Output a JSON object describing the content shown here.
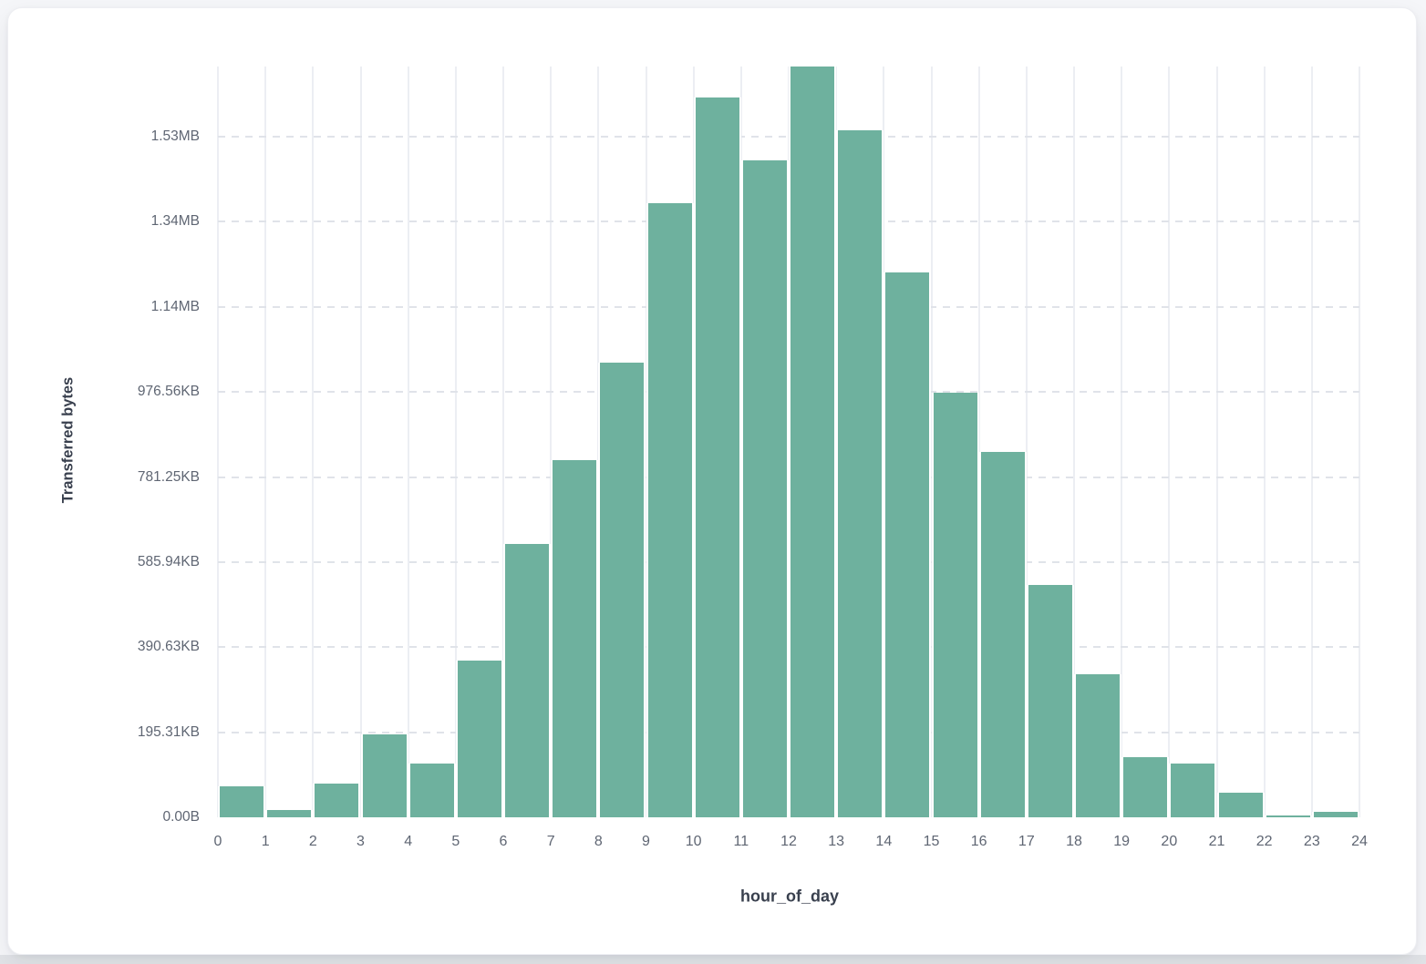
{
  "page": {
    "background_color": "#f5f6f9",
    "bottom_strip_color": "#e1e3e7",
    "card_background": "#ffffff"
  },
  "chart_data": {
    "type": "bar",
    "title": "",
    "xlabel": "hour_of_day",
    "ylabel": "Transferred bytes",
    "x_bin_start_hours": [
      0,
      1,
      2,
      3,
      4,
      5,
      6,
      7,
      8,
      9,
      10,
      11,
      12,
      13,
      14,
      15,
      16,
      17,
      18,
      19,
      20,
      21,
      22,
      23
    ],
    "values_bytes": [
      73000,
      16500,
      80000,
      196000,
      126000,
      369000,
      643000,
      839000,
      1069000,
      1444000,
      1692000,
      1545000,
      1765000,
      1616000,
      1282000,
      998000,
      858000,
      547000,
      336000,
      141000,
      126000,
      58500,
      3600,
      13000
    ],
    "x_tick_labels": [
      "0",
      "1",
      "2",
      "3",
      "4",
      "5",
      "6",
      "7",
      "8",
      "9",
      "10",
      "11",
      "12",
      "13",
      "14",
      "15",
      "16",
      "17",
      "18",
      "19",
      "20",
      "21",
      "22",
      "23",
      "24"
    ],
    "x_axis_range": [
      0,
      24
    ],
    "y_ticks": [
      {
        "label": "0.00B",
        "bytes": 0
      },
      {
        "label": "195.31KB",
        "bytes": 200000
      },
      {
        "label": "390.63KB",
        "bytes": 400000
      },
      {
        "label": "585.94KB",
        "bytes": 600000
      },
      {
        "label": "781.25KB",
        "bytes": 800000
      },
      {
        "label": "976.56KB",
        "bytes": 1000000
      },
      {
        "label": "1.14MB",
        "bytes": 1200000
      },
      {
        "label": "1.34MB",
        "bytes": 1400000
      },
      {
        "label": "1.53MB",
        "bytes": 1600000
      }
    ],
    "y_axis_max_bytes": 1765000,
    "grid": {
      "vertical": "solid",
      "horizontal": "dashed",
      "legend": false
    },
    "colors": {
      "bar": "#6eb19e",
      "grid_line_vertical": "#eceef3",
      "grid_line_dashed": "#e0e3e9",
      "tick_text": "#5f6673",
      "axis_title_text": "#39404e"
    }
  }
}
